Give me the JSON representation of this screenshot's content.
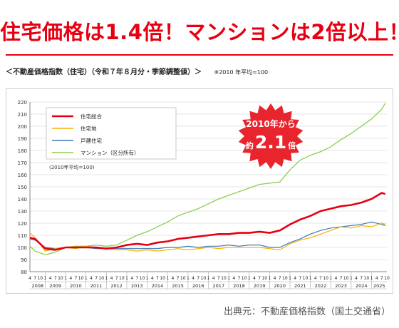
{
  "headline": "住宅価格は1.4倍！マンションは2倍以上！",
  "subtitle": "＜不動産価格指数（住宅）（令和７年８月分・季節調整値）＞",
  "subtitle_note": "※2010 年平均=100",
  "source": "出典元：不動産価格指数（国土交通省）",
  "badge": {
    "line1": "2010年から",
    "prefix": "約",
    "value": "2.1",
    "suffix": "倍"
  },
  "colors": {
    "headline": "#e60012",
    "residential_total": "#e60012",
    "land": "#f4b400",
    "detached": "#3f78b5",
    "condo": "#8ccd4f",
    "badge": "#e8242c"
  },
  "chart_data": {
    "type": "line",
    "ylim": [
      80,
      220
    ],
    "yticks": [
      80,
      90,
      100,
      110,
      120,
      130,
      140,
      150,
      160,
      170,
      180,
      190,
      200,
      210,
      220
    ],
    "xlim": [
      2008.25,
      2025.75
    ],
    "years": [
      "2008",
      "2009",
      "2010",
      "2011",
      "2012",
      "2013",
      "2014",
      "2015",
      "2016",
      "2017",
      "2018",
      "2019",
      "2020",
      "2021",
      "2022",
      "2023",
      "2024",
      "2025"
    ],
    "month_ticks": [
      "4",
      "7",
      "10"
    ],
    "legend_note": "(2010年平均=100)",
    "series": [
      {
        "name": "住宅総合",
        "key": "residential_total",
        "x": [
          2008.25,
          2008.5,
          2009.0,
          2009.5,
          2010.0,
          2010.5,
          2011.0,
          2011.5,
          2012.0,
          2012.5,
          2013.0,
          2013.5,
          2014.0,
          2014.5,
          2015.0,
          2015.5,
          2016.0,
          2016.5,
          2017.0,
          2017.5,
          2018.0,
          2018.5,
          2019.0,
          2019.5,
          2020.0,
          2020.5,
          2021.0,
          2021.5,
          2022.0,
          2022.5,
          2023.0,
          2023.5,
          2024.0,
          2024.5,
          2025.0,
          2025.5,
          2025.67
        ],
        "values": [
          108,
          107,
          99,
          98,
          100,
          100,
          100,
          100,
          99,
          100,
          102,
          103,
          102,
          104,
          105,
          107,
          108,
          109,
          110,
          111,
          111,
          112,
          112,
          113,
          112,
          114,
          119,
          123,
          126,
          130,
          132,
          134,
          135,
          137,
          140,
          145,
          144
        ]
      },
      {
        "name": "住宅地",
        "key": "land",
        "x": [
          2008.25,
          2008.5,
          2009.0,
          2009.5,
          2010.0,
          2010.5,
          2011.0,
          2011.5,
          2012.0,
          2012.5,
          2013.0,
          2013.5,
          2014.0,
          2014.5,
          2015.0,
          2015.5,
          2016.0,
          2016.5,
          2017.0,
          2017.5,
          2018.0,
          2018.5,
          2019.0,
          2019.5,
          2020.0,
          2020.5,
          2021.0,
          2021.5,
          2022.0,
          2022.5,
          2023.0,
          2023.5,
          2024.0,
          2024.5,
          2025.0,
          2025.5,
          2025.67
        ],
        "values": [
          112,
          108,
          97,
          99,
          100,
          99,
          101,
          100,
          99,
          98,
          98,
          97,
          98,
          97,
          98,
          99,
          98,
          99,
          100,
          99,
          100,
          100,
          100,
          100,
          99,
          98,
          103,
          106,
          108,
          111,
          114,
          117,
          116,
          118,
          117,
          120,
          119
        ]
      },
      {
        "name": "戸建住宅",
        "key": "detached",
        "x": [
          2008.25,
          2008.5,
          2009.0,
          2009.5,
          2010.0,
          2010.5,
          2011.0,
          2011.5,
          2012.0,
          2012.5,
          2013.0,
          2013.5,
          2014.0,
          2014.5,
          2015.0,
          2015.5,
          2016.0,
          2016.5,
          2017.0,
          2017.5,
          2018.0,
          2018.5,
          2019.0,
          2019.5,
          2020.0,
          2020.5,
          2021.0,
          2021.5,
          2022.0,
          2022.5,
          2023.0,
          2023.5,
          2024.0,
          2024.5,
          2025.0,
          2025.5,
          2025.67
        ],
        "values": [
          107,
          106,
          100,
          99,
          100,
          100,
          100,
          99,
          99,
          99,
          99,
          99,
          99,
          99,
          100,
          100,
          101,
          100,
          101,
          101,
          102,
          101,
          102,
          102,
          100,
          100,
          104,
          107,
          111,
          114,
          116,
          117,
          118,
          119,
          121,
          119,
          118
        ]
      },
      {
        "name": "マンション（区分所有）",
        "key": "condo",
        "x": [
          2008.25,
          2008.5,
          2009.0,
          2009.5,
          2010.0,
          2010.5,
          2011.0,
          2011.5,
          2012.0,
          2012.5,
          2013.0,
          2013.5,
          2014.0,
          2014.5,
          2015.0,
          2015.5,
          2016.0,
          2016.5,
          2017.0,
          2017.5,
          2018.0,
          2018.5,
          2019.0,
          2019.5,
          2020.0,
          2020.5,
          2021.0,
          2021.5,
          2022.0,
          2022.5,
          2023.0,
          2023.5,
          2024.0,
          2024.5,
          2025.0,
          2025.5,
          2025.67
        ],
        "values": [
          101,
          97,
          94,
          96,
          100,
          101,
          101,
          102,
          101,
          102,
          106,
          110,
          113,
          117,
          121,
          126,
          129,
          132,
          136,
          140,
          143,
          146,
          149,
          152,
          153,
          154,
          164,
          172,
          176,
          179,
          183,
          189,
          194,
          200,
          206,
          214,
          219
        ]
      }
    ]
  }
}
